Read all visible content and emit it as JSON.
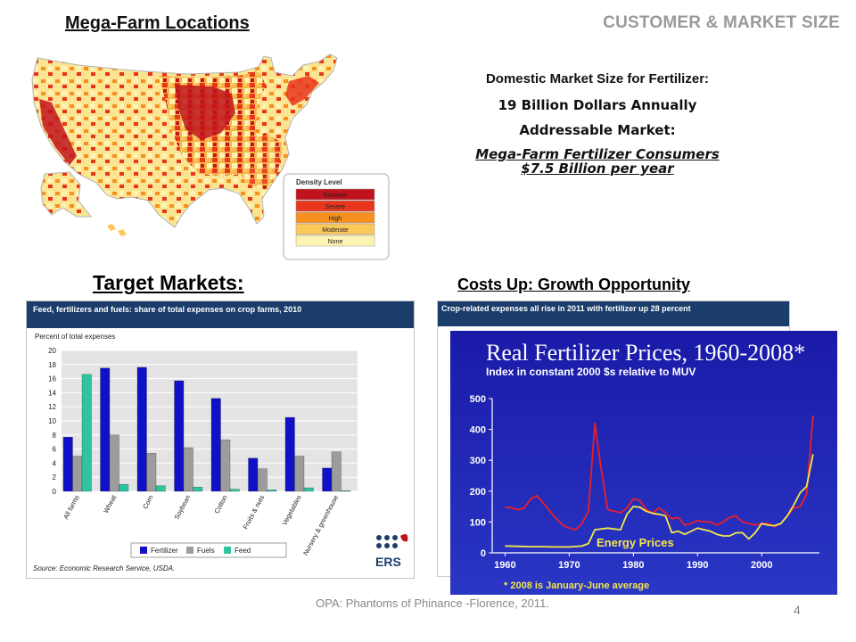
{
  "header": {
    "map_title": "Mega-Farm Locations",
    "section_title": "CUSTOMER & MARKET SIZE"
  },
  "map": {
    "legend_title": "Density Level",
    "levels": [
      {
        "label": "Extreme",
        "color": "#c0131b"
      },
      {
        "label": "Severe",
        "color": "#e8361c"
      },
      {
        "label": "High",
        "color": "#f6901e"
      },
      {
        "label": "Moderate",
        "color": "#fbc85a"
      },
      {
        "label": "None",
        "color": "#fdf3b3"
      }
    ]
  },
  "market": {
    "line1": "Domestic Market Size for Fertilizer:",
    "line2": "19 Billion Dollars Annually",
    "line3": "Addressable Market:",
    "line4": "Mega-Farm Fertilizer Consumers",
    "line5": "$7.5 Billion per year"
  },
  "target_title": "Target Markets:",
  "costs_title": "Costs Up: Growth Opportunity",
  "chart_data": [
    {
      "type": "bar",
      "title": "Feed, fertilizers and fuels: share of total expenses on crop farms, 2010",
      "ylabel": "Percent of total expenses",
      "ylim": [
        0,
        20
      ],
      "yticks": [
        0,
        2,
        4,
        6,
        8,
        10,
        12,
        14,
        16,
        18,
        20
      ],
      "categories": [
        "All farms",
        "Wheat",
        "Corn",
        "Soybean",
        "Cotton",
        "Fruits & nuts",
        "Vegetables",
        "Nursery & greenhouse"
      ],
      "series": [
        {
          "name": "Fertilizer",
          "color": "#1010c8",
          "values": [
            7.7,
            17.5,
            17.6,
            15.7,
            13.2,
            4.7,
            10.5,
            3.3
          ]
        },
        {
          "name": "Fuels",
          "color": "#9c9c9c",
          "values": [
            5.0,
            8.0,
            5.4,
            6.2,
            7.3,
            3.2,
            5.0,
            5.6
          ]
        },
        {
          "name": "Feed",
          "color": "#2ec4a0",
          "values": [
            16.6,
            1.0,
            0.8,
            0.6,
            0.3,
            0.2,
            0.5,
            0.1
          ]
        }
      ],
      "source": "Source: Economic Research Service, USDA.",
      "logo_text": "ERS",
      "legend": "bottom"
    },
    {
      "type": "line",
      "title": "Crop-related expenses all rise in 2011 with fertilizer up 28 percent",
      "partially_hidden": true
    },
    {
      "type": "line",
      "title": "Real Fertilizer Prices, 1960-2008*",
      "subtitle": "Index in constant 2000 $s relative to MUV",
      "xlim": [
        1958,
        2009
      ],
      "ylim": [
        0,
        500
      ],
      "xticks": [
        1960,
        1970,
        1980,
        1990,
        2000
      ],
      "yticks": [
        0,
        100,
        200,
        300,
        400,
        500
      ],
      "annotation": "Energy Prices",
      "footnote": "* 2008 is January-June average",
      "series": [
        {
          "name": "",
          "color": "#e8202a",
          "x": [
            1960,
            1961,
            1962,
            1963,
            1964,
            1965,
            1966,
            1967,
            1968,
            1969,
            1970,
            1971,
            1972,
            1973,
            1974,
            1975,
            1976,
            1977,
            1978,
            1979,
            1980,
            1981,
            1982,
            1983,
            1984,
            1985,
            1986,
            1987,
            1988,
            1989,
            1990,
            1991,
            1992,
            1993,
            1994,
            1995,
            1996,
            1997,
            1998,
            1999,
            2000,
            2001,
            2002,
            2003,
            2004,
            2005,
            2006,
            2007,
            2008
          ],
          "values": [
            148,
            146,
            140,
            145,
            175,
            185,
            160,
            135,
            110,
            90,
            80,
            75,
            95,
            135,
            420,
            270,
            140,
            135,
            130,
            145,
            175,
            170,
            140,
            130,
            145,
            130,
            110,
            115,
            90,
            95,
            105,
            100,
            100,
            90,
            100,
            115,
            120,
            100,
            95,
            90,
            95,
            95,
            85,
            95,
            120,
            145,
            150,
            190,
            445
          ]
        },
        {
          "name": "Energy Prices",
          "color": "#f4e84a",
          "x": [
            1960,
            1962,
            1964,
            1966,
            1968,
            1970,
            1972,
            1973,
            1974,
            1976,
            1978,
            1979,
            1980,
            1981,
            1982,
            1983,
            1984,
            1985,
            1986,
            1987,
            1988,
            1989,
            1990,
            1991,
            1992,
            1993,
            1994,
            1995,
            1996,
            1997,
            1998,
            1999,
            2000,
            2001,
            2002,
            2003,
            2004,
            2005,
            2006,
            2007,
            2008
          ],
          "values": [
            22,
            21,
            20,
            20,
            19,
            19,
            22,
            30,
            75,
            80,
            75,
            125,
            150,
            148,
            135,
            128,
            125,
            120,
            65,
            70,
            60,
            70,
            80,
            75,
            70,
            60,
            55,
            55,
            65,
            65,
            45,
            65,
            95,
            90,
            88,
            95,
            120,
            155,
            195,
            215,
            320
          ]
        }
      ]
    }
  ],
  "footer": {
    "text": "OPA: Phantoms of Phinance -Florence, 2011.",
    "page_number": "4"
  }
}
